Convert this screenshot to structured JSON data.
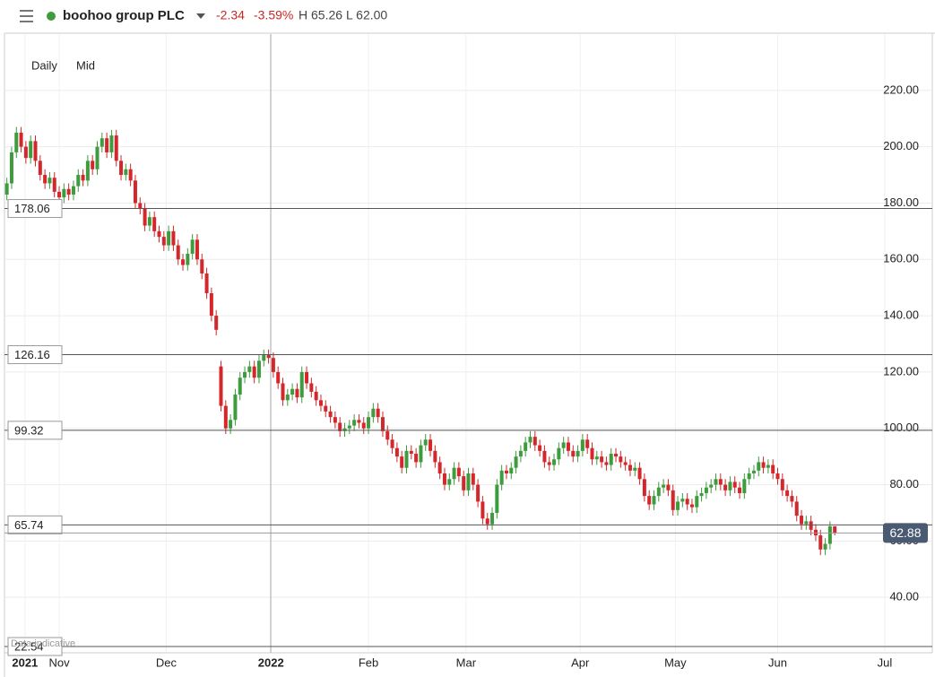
{
  "chart_data": {
    "type": "candlestick",
    "title": "boohoo group PLC",
    "change": "-2.34",
    "change_percent": "-3.59%",
    "high_label": "H 65.26",
    "low_label": "L 62.00",
    "interval": "Daily",
    "price_type": "Mid",
    "watermark": "Data indicative",
    "up_color": "#3e9b3e",
    "down_color": "#d3272b",
    "grid": true,
    "ylim": [
      20,
      240
    ],
    "yticks": [
      {
        "value": 40,
        "label": "40.00"
      },
      {
        "value": 60,
        "label": "60.00"
      },
      {
        "value": 80,
        "label": "80.00"
      },
      {
        "value": 100,
        "label": "100.00"
      },
      {
        "value": 120,
        "label": "120.00"
      },
      {
        "value": 140,
        "label": "140.00"
      },
      {
        "value": 160,
        "label": "160.00"
      },
      {
        "value": 180,
        "label": "180.00"
      },
      {
        "value": 200,
        "label": "200.00"
      },
      {
        "value": 220,
        "label": "220.00"
      }
    ],
    "xlim": [
      -0.5,
      194.5
    ],
    "xticks": [
      {
        "value": 3.8,
        "label": "2021"
      },
      {
        "value": 11,
        "label": "Nov"
      },
      {
        "value": 33.5,
        "label": "Dec"
      },
      {
        "value": 55.5,
        "label": "2022"
      },
      {
        "value": 76,
        "label": "Feb"
      },
      {
        "value": 96.5,
        "label": "Mar"
      },
      {
        "value": 120.5,
        "label": "Apr"
      },
      {
        "value": 140.5,
        "label": "May"
      },
      {
        "value": 162,
        "label": "Jun"
      },
      {
        "value": 184.5,
        "label": "Jul"
      }
    ],
    "levels": [
      178.06,
      126.16,
      99.32,
      65.74,
      22.54
    ],
    "last_price": 62.88,
    "series": {
      "open": [
        183,
        187,
        198,
        205,
        200,
        196,
        202,
        195,
        190,
        187,
        189,
        184,
        182,
        185,
        183,
        186,
        190,
        188,
        195,
        192,
        200,
        203,
        198,
        204,
        195,
        190,
        192,
        188,
        180,
        178,
        172,
        175,
        170,
        168,
        165,
        170,
        165,
        160,
        158,
        162,
        167,
        160,
        155,
        148,
        140,
        122,
        108,
        100,
        103,
        112,
        118,
        120,
        122,
        118,
        124,
        126,
        125,
        120,
        116,
        110,
        112,
        114,
        111,
        120,
        116,
        113,
        110,
        108,
        106,
        104,
        102,
        99,
        100,
        101,
        103,
        102,
        100,
        104,
        107,
        104,
        99,
        96,
        93,
        90,
        86,
        92,
        91,
        88,
        94,
        96,
        92,
        88,
        84,
        80,
        82,
        86,
        83,
        78,
        84,
        80,
        74,
        68,
        66,
        70,
        80,
        85,
        84,
        86,
        90,
        92,
        95,
        97,
        94,
        92,
        88,
        87,
        89,
        93,
        95,
        92,
        90,
        92,
        96,
        93,
        89,
        90,
        88,
        87,
        91,
        90,
        88,
        87,
        85,
        86,
        82,
        76,
        73,
        76,
        79,
        80,
        78,
        71,
        74,
        75,
        73,
        72,
        76,
        77,
        79,
        80,
        82,
        80,
        78,
        81,
        79,
        77,
        82,
        84,
        85,
        88,
        86,
        87,
        84,
        82,
        78,
        76,
        74,
        69,
        66,
        67,
        64,
        62,
        57,
        59,
        65.22
      ],
      "high": [
        189,
        200,
        207,
        207,
        202,
        204,
        204,
        197,
        192,
        191,
        191,
        186,
        187,
        187,
        188,
        192,
        192,
        197,
        197,
        202,
        205,
        205,
        206,
        206,
        197,
        194,
        194,
        190,
        182,
        180,
        177,
        177,
        172,
        170,
        172,
        172,
        167,
        162,
        164,
        169,
        169,
        162,
        157,
        150,
        142,
        124,
        110,
        105,
        114,
        120,
        122,
        124,
        124,
        126,
        128,
        128,
        127,
        122,
        118,
        114,
        116,
        116,
        122,
        122,
        118,
        115,
        112,
        110,
        108,
        106,
        104,
        102,
        103,
        105,
        105,
        104,
        106,
        109,
        109,
        106,
        101,
        98,
        95,
        92,
        94,
        94,
        93,
        96,
        98,
        98,
        94,
        90,
        86,
        84,
        88,
        88,
        85,
        86,
        86,
        82,
        76,
        70,
        72,
        82,
        87,
        87,
        88,
        92,
        94,
        97,
        99,
        99,
        96,
        94,
        90,
        91,
        95,
        97,
        97,
        94,
        94,
        98,
        98,
        95,
        92,
        92,
        90,
        93,
        93,
        92,
        90,
        89,
        88,
        88,
        84,
        78,
        78,
        81,
        82,
        82,
        80,
        76,
        77,
        77,
        75,
        78,
        79,
        81,
        82,
        84,
        84,
        82,
        83,
        83,
        81,
        84,
        86,
        87,
        90,
        90,
        89,
        89,
        86,
        84,
        80,
        78,
        76,
        71,
        69,
        69,
        66,
        64,
        61,
        67,
        65.26
      ],
      "low": [
        181,
        185,
        196,
        198,
        194,
        194,
        193,
        188,
        185,
        185,
        182,
        180,
        180,
        181,
        181,
        184,
        186,
        186,
        190,
        190,
        198,
        196,
        196,
        193,
        188,
        188,
        186,
        178,
        176,
        170,
        170,
        168,
        166,
        163,
        163,
        163,
        158,
        156,
        156,
        160,
        158,
        153,
        146,
        138,
        133,
        106,
        98,
        98,
        101,
        110,
        116,
        118,
        116,
        116,
        122,
        123,
        118,
        114,
        108,
        108,
        110,
        109,
        109,
        114,
        111,
        108,
        106,
        104,
        102,
        100,
        97,
        97,
        98,
        99,
        100,
        98,
        98,
        102,
        102,
        97,
        94,
        91,
        88,
        84,
        84,
        89,
        86,
        86,
        92,
        90,
        86,
        82,
        78,
        78,
        80,
        81,
        76,
        76,
        78,
        72,
        66,
        64,
        64,
        68,
        78,
        82,
        82,
        84,
        88,
        90,
        93,
        92,
        90,
        86,
        85,
        85,
        87,
        91,
        90,
        88,
        88,
        90,
        91,
        87,
        87,
        86,
        85,
        85,
        88,
        86,
        85,
        83,
        83,
        80,
        74,
        71,
        71,
        74,
        77,
        76,
        69,
        69,
        72,
        71,
        70,
        70,
        74,
        75,
        77,
        78,
        78,
        76,
        76,
        77,
        75,
        75,
        80,
        82,
        83,
        84,
        84,
        82,
        80,
        76,
        74,
        72,
        67,
        64,
        64,
        62,
        60,
        55,
        55,
        57,
        62.0
      ],
      "close": [
        187,
        198,
        205,
        200,
        196,
        202,
        195,
        190,
        187,
        189,
        184,
        182,
        185,
        183,
        186,
        190,
        188,
        195,
        192,
        200,
        203,
        198,
        204,
        195,
        190,
        192,
        188,
        180,
        178,
        172,
        175,
        170,
        168,
        165,
        170,
        165,
        160,
        158,
        162,
        167,
        160,
        155,
        148,
        140,
        135,
        108,
        100,
        103,
        112,
        118,
        120,
        122,
        118,
        124,
        126,
        125,
        120,
        116,
        110,
        112,
        114,
        111,
        120,
        116,
        113,
        110,
        108,
        106,
        104,
        102,
        99,
        100,
        101,
        103,
        102,
        100,
        104,
        107,
        104,
        99,
        96,
        93,
        90,
        86,
        92,
        91,
        88,
        94,
        96,
        92,
        88,
        84,
        80,
        82,
        86,
        83,
        78,
        84,
        80,
        74,
        68,
        66,
        70,
        80,
        85,
        84,
        86,
        90,
        92,
        95,
        97,
        94,
        92,
        88,
        87,
        89,
        93,
        95,
        92,
        90,
        92,
        96,
        93,
        89,
        90,
        88,
        87,
        91,
        90,
        88,
        87,
        85,
        86,
        82,
        76,
        73,
        76,
        79,
        80,
        78,
        71,
        74,
        75,
        73,
        72,
        76,
        77,
        79,
        80,
        82,
        80,
        78,
        81,
        79,
        77,
        82,
        84,
        85,
        88,
        86,
        87,
        84,
        82,
        78,
        76,
        74,
        69,
        66,
        67,
        64,
        62,
        57,
        59,
        65.22,
        62.88
      ]
    }
  }
}
